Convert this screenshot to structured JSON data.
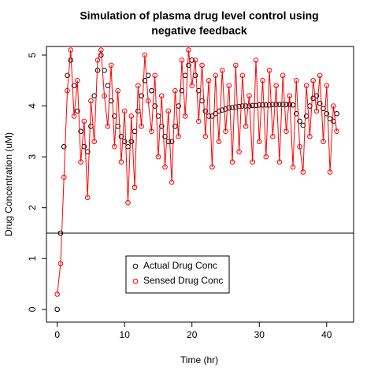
{
  "chart_data": {
    "type": "line",
    "title": [
      "Simulation of plasma drug level control using",
      "negative feedback"
    ],
    "x_label": "Time (hr)",
    "y_label": "Drug Concentration (uM)",
    "x": [
      0,
      0.5,
      1,
      1.5,
      2,
      2.5,
      3,
      3.5,
      4,
      4.5,
      5,
      5.5,
      6,
      6.5,
      7,
      7.5,
      8,
      8.5,
      9,
      9.5,
      10,
      10.5,
      11,
      11.5,
      12,
      12.5,
      13,
      13.5,
      14,
      14.5,
      15,
      15.5,
      16,
      16.5,
      17,
      17.5,
      18,
      18.5,
      19,
      19.5,
      20,
      20.5,
      21,
      21.5,
      22,
      22.5,
      23,
      23.5,
      24,
      24.5,
      25,
      25.5,
      26,
      26.5,
      27,
      27.5,
      28,
      28.5,
      29,
      29.5,
      30,
      30.5,
      31,
      31.5,
      32,
      32.5,
      33,
      33.5,
      34,
      34.5,
      35,
      35.5,
      36,
      36.5,
      37,
      37.5,
      38,
      38.5,
      39,
      39.5,
      40,
      40.5,
      41,
      41.5
    ],
    "series": [
      {
        "name": "Actual Drug Conc",
        "color": "#000000",
        "style": "points",
        "values": [
          0,
          1.5,
          3.2,
          4.6,
          4.9,
          4.4,
          3.9,
          3.5,
          3.2,
          3.1,
          3.6,
          4.2,
          4.7,
          5.0,
          4.7,
          4.4,
          4.1,
          3.8,
          3.6,
          3.4,
          3.3,
          3.2,
          3.3,
          3.5,
          3.9,
          4.2,
          4.5,
          4.6,
          4.3,
          4.0,
          3.8,
          3.6,
          3.4,
          3.3,
          3.3,
          3.6,
          4.0,
          4.3,
          4.6,
          4.8,
          4.9,
          4.6,
          4.3,
          4.1,
          3.9,
          3.8,
          3.8,
          3.85,
          3.9,
          3.92,
          3.94,
          3.96,
          3.97,
          3.98,
          3.99,
          4.0,
          4.0,
          4.0,
          4.01,
          4.01,
          4.02,
          4.02,
          4.02,
          4.02,
          4.03,
          4.03,
          4.03,
          4.03,
          4.03,
          4.03,
          4.02,
          3.85,
          3.7,
          3.62,
          3.8,
          4.0,
          4.15,
          4.2,
          4.05,
          3.95,
          3.85,
          3.75,
          3.7,
          3.85
        ]
      },
      {
        "name": "Sensed Drug Conc",
        "color": "#ff0000",
        "style": "points-lines",
        "values": [
          0.3,
          0.9,
          2.6,
          4.3,
          5.1,
          3.8,
          4.5,
          2.9,
          3.7,
          2.2,
          4.1,
          3.3,
          4.9,
          5.1,
          4.2,
          3.6,
          4.8,
          3.2,
          4.3,
          2.9,
          3.9,
          2.1,
          3.8,
          2.4,
          4.4,
          3.6,
          5.0,
          4.1,
          3.5,
          4.6,
          3.0,
          4.2,
          2.8,
          3.9,
          2.5,
          4.3,
          3.4,
          4.9,
          3.8,
          5.1,
          4.4,
          4.9,
          3.7,
          4.8,
          3.4,
          4.5,
          2.8,
          4.6,
          3.3,
          4.7,
          3.5,
          4.4,
          2.9,
          4.8,
          3.1,
          4.6,
          3.6,
          4.2,
          2.9,
          4.9,
          3.3,
          4.5,
          3.0,
          4.7,
          3.4,
          4.4,
          2.9,
          4.6,
          3.5,
          4.2,
          2.8,
          4.5,
          3.2,
          2.7,
          4.4,
          3.4,
          4.5,
          3.9,
          4.6,
          3.3,
          4.4,
          2.7,
          4.0,
          3.5
        ]
      }
    ],
    "hline": 1.5,
    "xlim": [
      -1.6,
      44
    ],
    "ylim": [
      -0.25,
      5.17
    ],
    "xticks": [
      0,
      10,
      20,
      30,
      40
    ],
    "yticks": [
      0,
      1,
      2,
      3,
      4,
      5
    ],
    "legend_position": "bottom"
  }
}
